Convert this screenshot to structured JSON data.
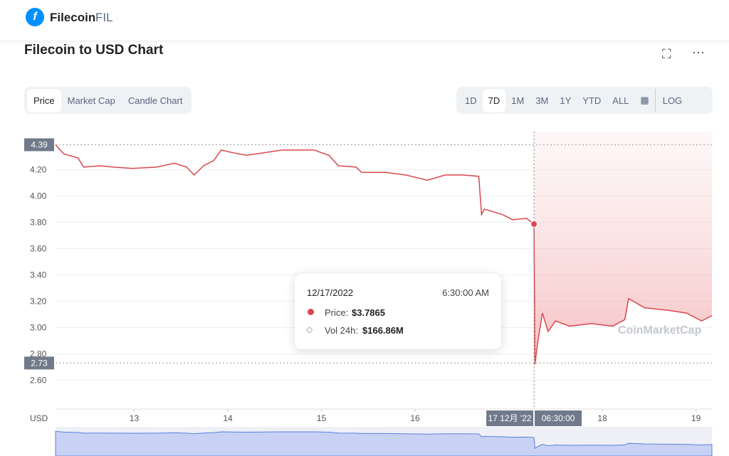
{
  "header": {
    "name": "Filecoin",
    "symbol": "FIL",
    "logo": "f"
  },
  "tabs": [
    "Price",
    "Market Cap",
    "Candle Chart"
  ],
  "ranges": [
    "1D",
    "7D",
    "1M",
    "3M",
    "1Y",
    "YTD",
    "ALL",
    "LOG"
  ],
  "chart_data": {
    "type": "line",
    "title": "Filecoin to USD Chart",
    "y_unit": "USD",
    "watermark": "CoinMarketCap",
    "x": [
      12.16,
      12.25,
      12.4,
      12.46,
      12.63,
      12.78,
      12.98,
      13.24,
      13.43,
      13.56,
      13.64,
      13.74,
      13.85,
      13.93,
      14.05,
      14.2,
      14.39,
      14.58,
      14.69,
      14.92,
      15.08,
      15.18,
      15.37,
      15.43,
      15.68,
      15.9,
      16.13,
      16.32,
      16.51,
      16.68,
      16.71,
      16.74,
      16.93,
      17.04,
      17.19,
      17.27,
      17.28,
      17.31,
      17.36,
      17.42,
      17.5,
      17.65,
      17.88,
      18.11,
      18.24,
      18.28,
      18.45,
      18.71,
      18.9,
      19.06,
      19.17
    ],
    "series": [
      {
        "name": "Price",
        "color": "#d8484f",
        "values": [
          4.39,
          4.32,
          4.29,
          4.22,
          4.23,
          4.22,
          4.21,
          4.22,
          4.25,
          4.22,
          4.16,
          4.23,
          4.27,
          4.35,
          4.33,
          4.31,
          4.33,
          4.35,
          4.35,
          4.35,
          4.31,
          4.23,
          4.22,
          4.18,
          4.18,
          4.16,
          4.12,
          4.16,
          4.16,
          4.15,
          3.86,
          3.9,
          3.86,
          3.82,
          3.83,
          3.7865,
          2.72,
          2.89,
          3.11,
          2.97,
          3.05,
          3.01,
          3.03,
          3.01,
          3.06,
          3.22,
          3.15,
          3.13,
          3.11,
          3.05,
          3.09
        ]
      }
    ],
    "xlim": [
      12.16,
      19.17
    ],
    "xticks": [
      13,
      14,
      15,
      16,
      18,
      19
    ],
    "ylim": [
      2.38,
      4.49
    ],
    "yticks": [
      {
        "value": 2.6,
        "label": "2.60"
      },
      {
        "value": 2.8,
        "label": "2.80"
      },
      {
        "value": 3.0,
        "label": "3.00"
      },
      {
        "value": 3.2,
        "label": "3.20"
      },
      {
        "value": 3.4,
        "label": "3.40"
      },
      {
        "value": 3.6,
        "label": "3.60"
      },
      {
        "value": 3.8,
        "label": "3.80"
      },
      {
        "value": 4.0,
        "label": "4.00"
      },
      {
        "value": 4.2,
        "label": "4.20"
      }
    ],
    "y_markers": [
      {
        "value": 4.39,
        "label": "4.39"
      },
      {
        "value": 2.73,
        "label": "2.73"
      }
    ],
    "grid": true,
    "log_scale": false,
    "hover": {
      "x": 17.27,
      "value": 3.7865,
      "x_label": "17 12月 '22",
      "time_label": "06:30:00",
      "tooltip": {
        "date": "12/17/2022",
        "time": "6:30:00 AM",
        "price_label": "Price:",
        "price": "$3.7865",
        "volume_label": "Vol 24h:",
        "volume": "$166.86M"
      }
    }
  }
}
